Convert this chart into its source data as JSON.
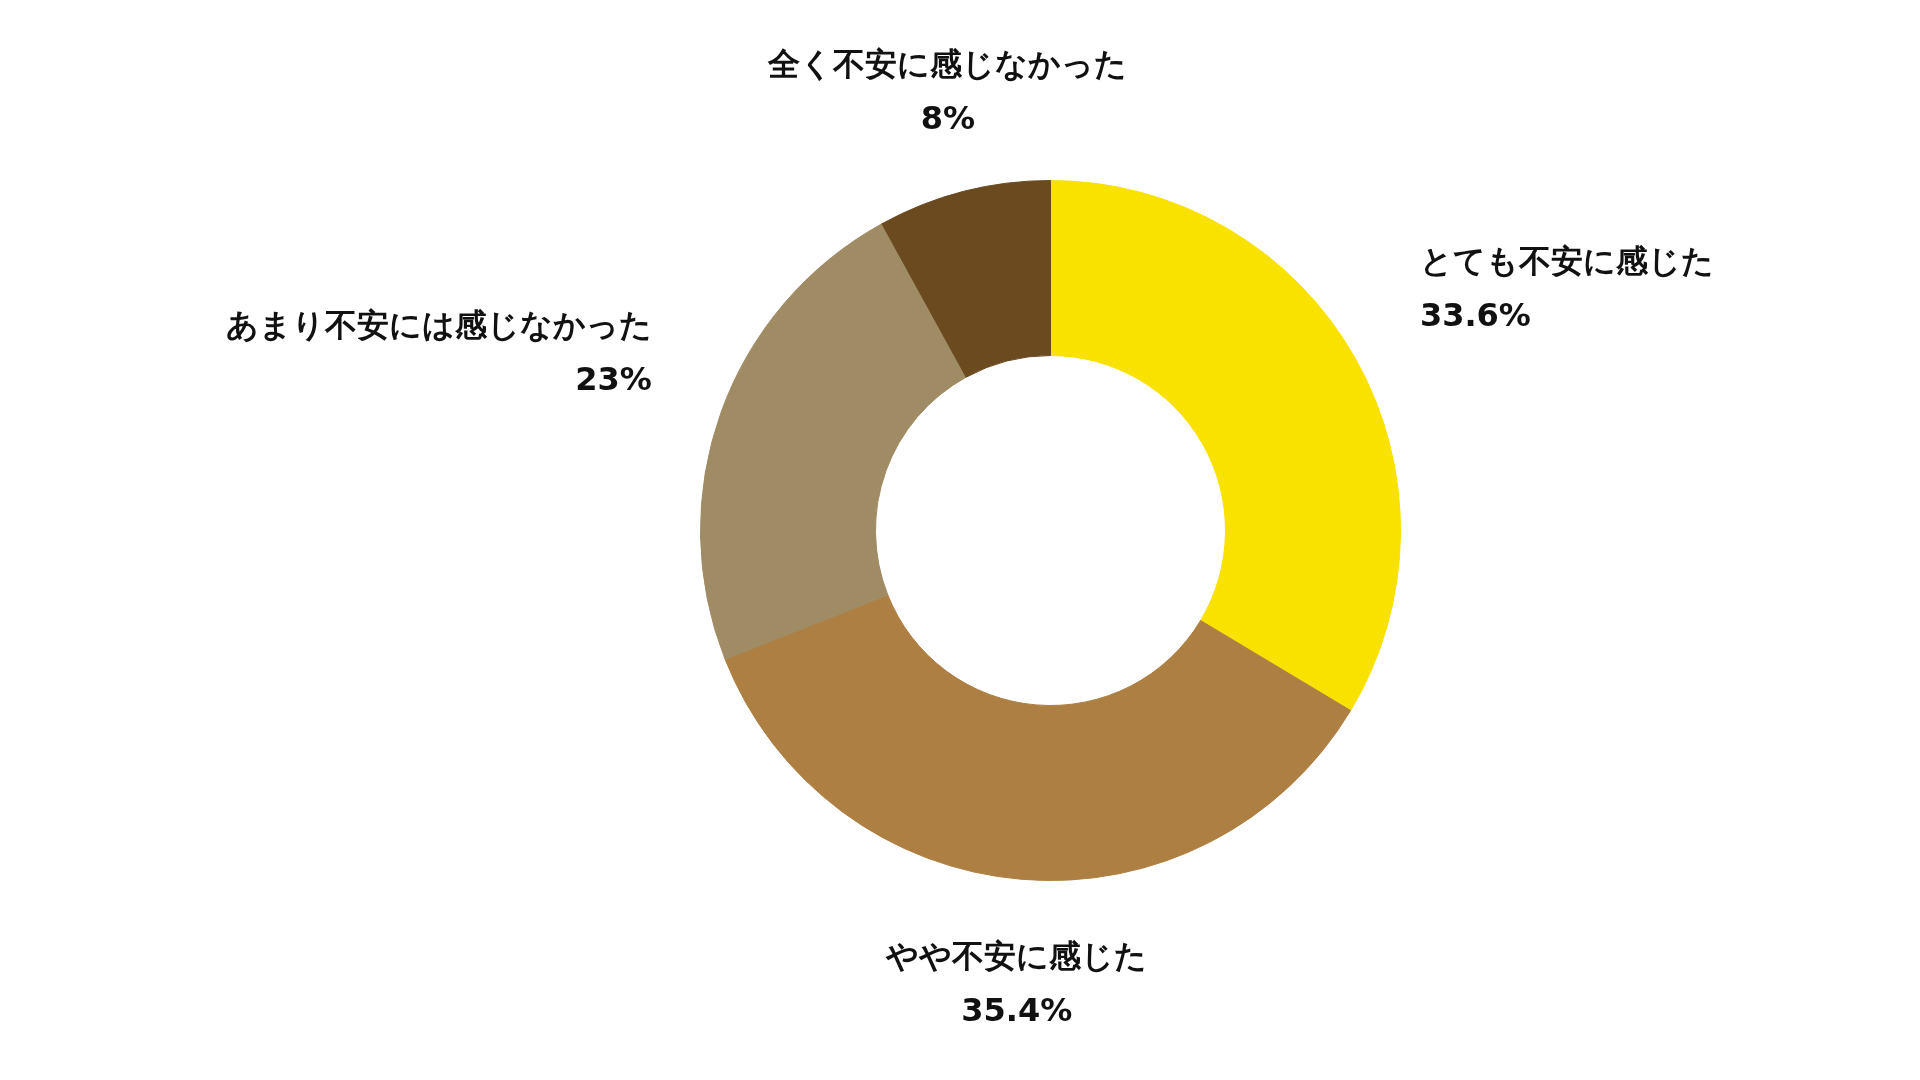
{
  "chart_data": {
    "type": "donut",
    "categories": [
      "とても不安に感じた",
      "やや不安に感じた",
      "あまり不安には感じなかった",
      "全く不安に感じなかった"
    ],
    "values": [
      33.6,
      35.4,
      23,
      8
    ],
    "colors": [
      "#f9e100",
      "#ae7f42",
      "#a08c64",
      "#6b4a20"
    ],
    "value_labels": [
      "33.6%",
      "35.4%",
      "23%",
      "8%"
    ]
  }
}
